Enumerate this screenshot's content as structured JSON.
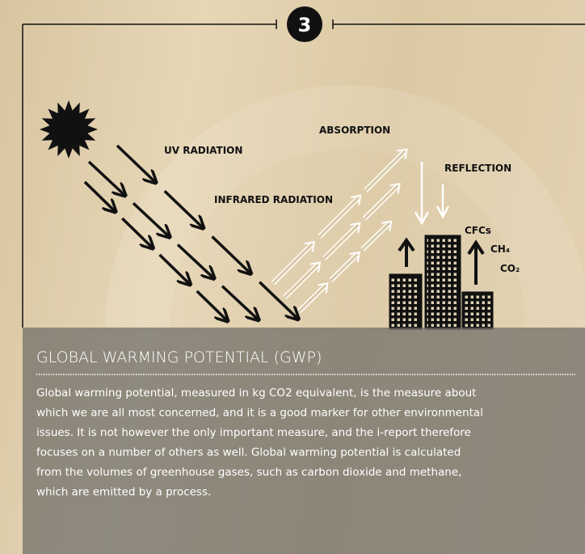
{
  "step": "3",
  "diagram": {
    "labels": {
      "uv": "UV RADIATION",
      "infrared": "INFRARED RADIATION",
      "absorption": "ABSORPTION",
      "reflection": "REFLECTION",
      "cfcs": "CFCs",
      "ch4": "CH₄",
      "co2": "CO₂"
    }
  },
  "panel": {
    "title": "GLOBAL WARMING POTENTIAL (GWP)",
    "lines": [
      "Global warming potential, measured in kg CO2 equivalent, is the measure about",
      "which we are all most concerned, and it is a good marker for other environmental",
      "issues. It is not however the only important measure, and the i-report therefore",
      "focuses on a number of others as well. Global warming potential is calculated",
      "from the volumes of greenhouse gases, such as carbon dioxide and methane,",
      "which are emitted by a process."
    ]
  }
}
